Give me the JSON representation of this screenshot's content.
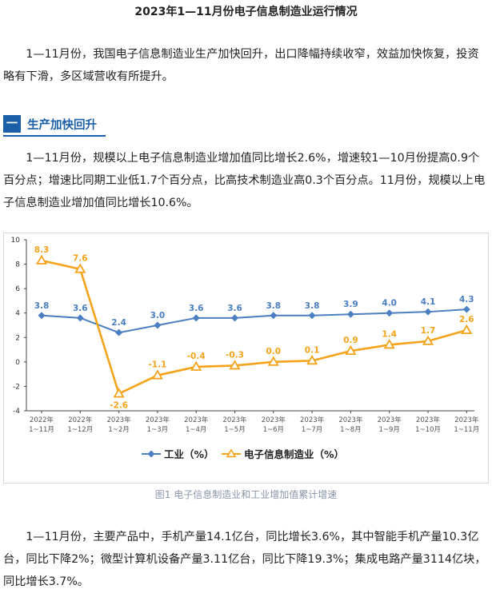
{
  "article": {
    "title": "2023年1—11月份电子信息制造业运行情况",
    "intro": "1—11月份，我国电子信息制造业生产加快回升，出口降幅持续收窄，效益加快恢复，投资略有下滑，多区域营收有所提升。",
    "section1": {
      "number": "一",
      "title": "生产加快回升"
    },
    "para1": "1—11月份，规模以上电子信息制造业增加值同比增长2.6%，增速较1—10月份提高0.9个百分点；增速比同期工业低1.7个百分点，比高技术制造业高0.3个百分点。11月份，规模以上电子信息制造业增加值同比增长10.6%。",
    "caption": "图1 电子信息制造业和工业增加值累计增速",
    "para2": "1—11月份，主要产品中，手机产量14.1亿台，同比增长3.6%，其中智能手机产量10.3亿台，同比下降2%；微型计算机设备产量3.11亿台，同比下降19.3%；集成电路产量3114亿块，同比增长3.7%。"
  },
  "chart_data": {
    "type": "line",
    "categories": [
      [
        "2022年",
        "1~11月"
      ],
      [
        "2022年",
        "1~12月"
      ],
      [
        "2023年",
        "1~2月"
      ],
      [
        "2023年",
        "1~3月"
      ],
      [
        "2023年",
        "1~4月"
      ],
      [
        "2023年",
        "1~5月"
      ],
      [
        "2023年",
        "1~6月"
      ],
      [
        "2023年",
        "1~7月"
      ],
      [
        "2023年",
        "1~8月"
      ],
      [
        "2023年",
        "1~9月"
      ],
      [
        "2023年",
        "1~10月"
      ],
      [
        "2023年",
        "1~11月"
      ]
    ],
    "series": [
      {
        "name": "工业（%）",
        "color": "#4a7fc1",
        "marker": "diamond",
        "values": [
          3.8,
          3.6,
          2.4,
          3.0,
          3.6,
          3.6,
          3.8,
          3.8,
          3.9,
          4.0,
          4.1,
          4.3
        ]
      },
      {
        "name": "电子信息制造业（%）",
        "color": "#f5a31a",
        "marker": "triangle",
        "values": [
          8.3,
          7.6,
          -2.6,
          -1.1,
          -0.4,
          -0.3,
          0.0,
          0.1,
          0.9,
          1.4,
          1.7,
          2.6
        ]
      }
    ],
    "yticks": [
      -4,
      -2,
      0,
      2,
      4,
      6,
      8,
      10
    ],
    "ylim": [
      -4,
      10
    ],
    "legend_position": "bottom",
    "grid": false
  }
}
